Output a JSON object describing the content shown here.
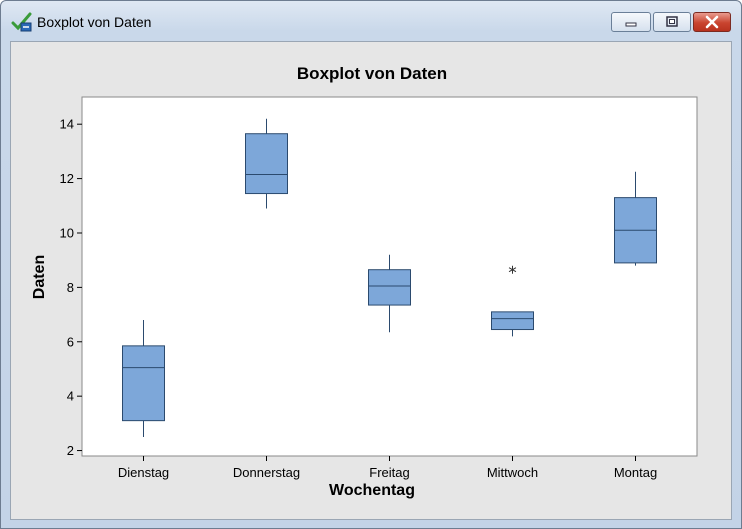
{
  "window": {
    "title": "Boxplot von Daten"
  },
  "chart_data": {
    "type": "boxplot",
    "title": "Boxplot von Daten",
    "xlabel": "Wochentag",
    "ylabel": "Daten",
    "ylim": [
      1.8,
      15
    ],
    "yticks": [
      2,
      4,
      6,
      8,
      10,
      12,
      14
    ],
    "categories": [
      "Dienstag",
      "Donnerstag",
      "Freitag",
      "Mittwoch",
      "Montag"
    ],
    "boxes": [
      {
        "category": "Dienstag",
        "whisker_low": 2.5,
        "q1": 3.1,
        "median": 5.05,
        "q3": 5.85,
        "whisker_high": 6.8,
        "outliers": []
      },
      {
        "category": "Donnerstag",
        "whisker_low": 10.9,
        "q1": 11.45,
        "median": 12.15,
        "q3": 13.65,
        "whisker_high": 14.2,
        "outliers": []
      },
      {
        "category": "Freitag",
        "whisker_low": 6.35,
        "q1": 7.35,
        "median": 8.05,
        "q3": 8.65,
        "whisker_high": 9.2,
        "outliers": []
      },
      {
        "category": "Mittwoch",
        "whisker_low": 6.2,
        "q1": 6.45,
        "median": 6.85,
        "q3": 7.1,
        "whisker_high": 7.1,
        "outliers": [
          8.65
        ]
      },
      {
        "category": "Montag",
        "whisker_low": 8.8,
        "q1": 8.9,
        "median": 10.1,
        "q3": 11.3,
        "whisker_high": 12.25,
        "outliers": []
      }
    ],
    "colors": {
      "box_fill": "#7da7d9",
      "box_stroke": "#2b4a6e",
      "median": "#2b4a6e",
      "plot_bg": "#ffffff",
      "frame_bg": "#e6e6e6"
    },
    "grid": false
  }
}
